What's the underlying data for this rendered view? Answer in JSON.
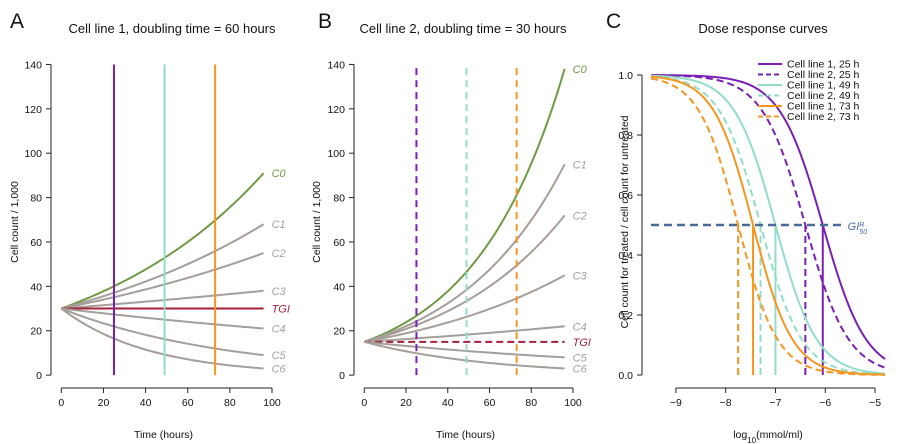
{
  "colors": {
    "c0": "#6f9a43",
    "cgray": "#a59e99",
    "tgi": "#a51f3a",
    "t25": "#7a1fb5",
    "t49": "#92ddc9",
    "t73": "#f6951f",
    "gi50": "#4a6a98",
    "axis": "#222222"
  },
  "chart_data": [
    {
      "type": "line",
      "panel": "A",
      "title": "Cell line 1, doubling time = 60 hours",
      "xlabel": "Time (hours)",
      "ylabel": "Cell count / 1,000",
      "xlim": [
        -3,
        100
      ],
      "ylim": [
        -4,
        142
      ],
      "xticks": [
        0,
        20,
        40,
        60,
        80,
        100
      ],
      "yticks": [
        0,
        20,
        40,
        60,
        80,
        100,
        120,
        140
      ],
      "doubling_time": 60,
      "n0": 30,
      "t_end": 96,
      "labels": [
        "C0",
        "C1",
        "C2",
        "C3",
        "TGI",
        "C4",
        "C5",
        "C6"
      ],
      "end_values": [
        91,
        68,
        55,
        38,
        30,
        21,
        9,
        3
      ],
      "vlines": [
        {
          "x": 25,
          "color": "t25",
          "dash": false
        },
        {
          "x": 49,
          "color": "t49",
          "dash": false
        },
        {
          "x": 73,
          "color": "t73",
          "dash": false
        }
      ]
    },
    {
      "type": "line",
      "panel": "B",
      "title": "Cell line 2, doubling time = 30 hours",
      "xlabel": "Time (hours)",
      "ylabel": "Cell count / 1,000",
      "xlim": [
        -3,
        100
      ],
      "ylim": [
        -4,
        142
      ],
      "xticks": [
        0,
        20,
        40,
        60,
        80,
        100
      ],
      "yticks": [
        0,
        20,
        40,
        60,
        80,
        100,
        120,
        140
      ],
      "doubling_time": 30,
      "n0": 15,
      "t_end": 96,
      "labels": [
        "C0",
        "C1",
        "C2",
        "C3",
        "C4",
        "TGI",
        "C5",
        "C6"
      ],
      "end_values": [
        138,
        95,
        72,
        45,
        22,
        15,
        8,
        3
      ],
      "vlines": [
        {
          "x": 25,
          "color": "t25",
          "dash": true
        },
        {
          "x": 49,
          "color": "t49",
          "dash": true
        },
        {
          "x": 73,
          "color": "t73",
          "dash": true
        }
      ]
    },
    {
      "type": "line",
      "panel": "C",
      "title": "Dose response curves",
      "xlabel": "log10(mmol/ml)",
      "ylabel": "Cell count for treated / cell count for untreated",
      "xlim": [
        -9.6,
        -4.7
      ],
      "ylim": [
        -0.03,
        1.05
      ],
      "xticks": [
        -9,
        -8,
        -7,
        -6,
        -5
      ],
      "yticks": [
        0.0,
        0.2,
        0.4,
        0.6,
        0.8,
        1.0
      ],
      "annotation": "GI50R",
      "gi50_level": 0.5,
      "series": [
        {
          "name": "Cell line 1, 25 h",
          "color": "t25",
          "dash": false,
          "ec50": -6.05,
          "slope": 1.0
        },
        {
          "name": "Cell line 2, 25 h",
          "color": "t25",
          "dash": true,
          "ec50": -6.4,
          "slope": 1.0
        },
        {
          "name": "Cell line 1, 49 h",
          "color": "t49",
          "dash": false,
          "ec50": -7.0,
          "slope": 1.05
        },
        {
          "name": "Cell line 2, 49 h",
          "color": "t49",
          "dash": true,
          "ec50": -7.3,
          "slope": 1.05
        },
        {
          "name": "Cell line 1, 73 h",
          "color": "t73",
          "dash": false,
          "ec50": -7.45,
          "slope": 1.1
        },
        {
          "name": "Cell line 2, 73 h",
          "color": "t73",
          "dash": true,
          "ec50": -7.75,
          "slope": 1.1
        }
      ]
    }
  ]
}
